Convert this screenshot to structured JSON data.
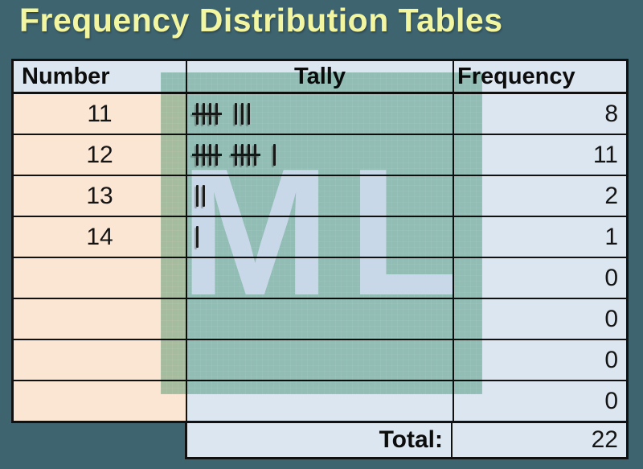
{
  "title": "Frequency Distribution Tables",
  "watermark": {
    "text": "ML"
  },
  "table": {
    "headers": [
      "Number",
      "Tally",
      "Frequency"
    ],
    "rows": [
      {
        "number": "11",
        "tally_groups": [
          5,
          3
        ],
        "frequency": "8"
      },
      {
        "number": "12",
        "tally_groups": [
          5,
          5,
          1
        ],
        "frequency": "11"
      },
      {
        "number": "13",
        "tally_groups": [
          2
        ],
        "frequency": "2"
      },
      {
        "number": "14",
        "tally_groups": [
          1
        ],
        "frequency": "1"
      },
      {
        "number": "",
        "tally_groups": [],
        "frequency": "0"
      },
      {
        "number": "",
        "tally_groups": [],
        "frequency": "0"
      },
      {
        "number": "",
        "tally_groups": [],
        "frequency": "0"
      },
      {
        "number": "",
        "tally_groups": [],
        "frequency": "0"
      }
    ],
    "total_label": "Total:",
    "total_value": "22"
  },
  "colors": {
    "background": "#3E6470",
    "title_text": "#F3F6A1",
    "header_cell": "#DCE6F0",
    "number_cell": "#FBE5D3",
    "value_cell": "#DCE6F0",
    "grid_line": "#111111",
    "watermark_green": "#A9D2C0",
    "watermark_text": "#E9F0F7"
  },
  "chart_data": {
    "type": "table",
    "title": "Frequency Distribution Tables",
    "columns": [
      "Number",
      "Tally",
      "Frequency"
    ],
    "numbers": [
      11,
      12,
      13,
      14
    ],
    "frequencies": [
      8,
      11,
      2,
      1
    ],
    "empty_row_frequencies": [
      0,
      0,
      0,
      0
    ],
    "total": 22
  }
}
